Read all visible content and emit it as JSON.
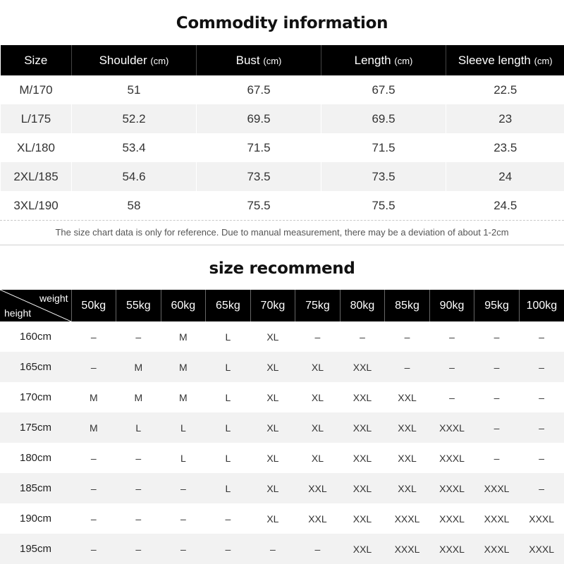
{
  "commodity": {
    "title": "Commodity information",
    "headers": [
      {
        "label": "Size",
        "unit": ""
      },
      {
        "label": "Shoulder",
        "unit": "(cm)"
      },
      {
        "label": "Bust",
        "unit": "(cm)"
      },
      {
        "label": "Length",
        "unit": "(cm)"
      },
      {
        "label": "Sleeve length",
        "unit": "(cm)"
      }
    ],
    "rows": [
      [
        "M/170",
        "51",
        "67.5",
        "67.5",
        "22.5"
      ],
      [
        "L/175",
        "52.2",
        "69.5",
        "69.5",
        "23"
      ],
      [
        "XL/180",
        "53.4",
        "71.5",
        "71.5",
        "23.5"
      ],
      [
        "2XL/185",
        "54.6",
        "73.5",
        "73.5",
        "24"
      ],
      [
        "3XL/190",
        "58",
        "75.5",
        "75.5",
        "24.5"
      ]
    ],
    "note": "The size chart data is only for reference. Due to manual measurement, there may be a deviation of about 1-2cm"
  },
  "recommend": {
    "title": "size recommend",
    "corner_weight": "weight",
    "corner_height": "height",
    "weights": [
      "50kg",
      "55kg",
      "60kg",
      "65kg",
      "70kg",
      "75kg",
      "80kg",
      "85kg",
      "90kg",
      "95kg",
      "100kg"
    ],
    "rows": [
      {
        "height": "160cm",
        "sizes": [
          "–",
          "–",
          "M",
          "L",
          "XL",
          "–",
          "–",
          "–",
          "–",
          "–",
          "–"
        ]
      },
      {
        "height": "165cm",
        "sizes": [
          "–",
          "M",
          "M",
          "L",
          "XL",
          "XL",
          "XXL",
          "–",
          "–",
          "–",
          "–"
        ]
      },
      {
        "height": "170cm",
        "sizes": [
          "M",
          "M",
          "M",
          "L",
          "XL",
          "XL",
          "XXL",
          "XXL",
          "–",
          "–",
          "–"
        ]
      },
      {
        "height": "175cm",
        "sizes": [
          "M",
          "L",
          "L",
          "L",
          "XL",
          "XL",
          "XXL",
          "XXL",
          "XXXL",
          "–",
          "–"
        ]
      },
      {
        "height": "180cm",
        "sizes": [
          "–",
          "–",
          "L",
          "L",
          "XL",
          "XL",
          "XXL",
          "XXL",
          "XXXL",
          "–",
          "–"
        ]
      },
      {
        "height": "185cm",
        "sizes": [
          "–",
          "–",
          "–",
          "L",
          "XL",
          "XXL",
          "XXL",
          "XXL",
          "XXXL",
          "XXXL",
          "–"
        ]
      },
      {
        "height": "190cm",
        "sizes": [
          "–",
          "–",
          "–",
          "–",
          "XL",
          "XXL",
          "XXL",
          "XXXL",
          "XXXL",
          "XXXL",
          "XXXL"
        ]
      },
      {
        "height": "195cm",
        "sizes": [
          "–",
          "–",
          "–",
          "–",
          "–",
          "–",
          "XXL",
          "XXXL",
          "XXXL",
          "XXXL",
          "XXXL"
        ]
      }
    ]
  }
}
